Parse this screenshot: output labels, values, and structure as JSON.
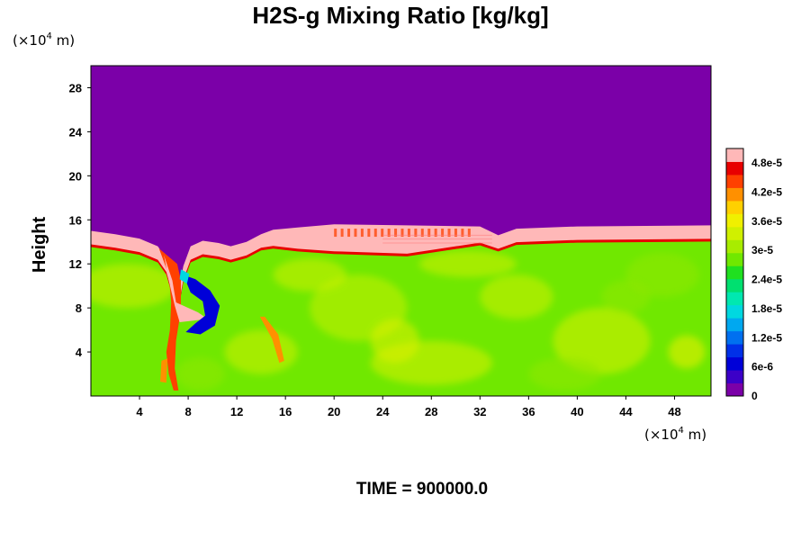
{
  "chart_data": {
    "type": "heatmap",
    "title": "H2S-g Mixing Ratio [kg/kg]",
    "ylabel": "Height",
    "x_unit": "(×10",
    "x_unit_exp": "4",
    "x_unit_tail": " m)",
    "y_unit": "(×10",
    "y_unit_exp": "4",
    "y_unit_tail": " m)",
    "xlim": [
      0,
      51
    ],
    "ylim": [
      0,
      30
    ],
    "xticks": [
      4,
      8,
      12,
      16,
      20,
      24,
      28,
      32,
      36,
      40,
      44,
      48
    ],
    "yticks": [
      4,
      8,
      12,
      16,
      20,
      24,
      28
    ],
    "colorbar": {
      "range": [
        0,
        5.1e-05
      ],
      "tick_values": [
        0,
        6e-06,
        1.2e-05,
        1.8e-05,
        2.4e-05,
        3e-05,
        3.6e-05,
        4.2e-05,
        4.8e-05
      ],
      "tick_labels": [
        "0",
        "6e-6",
        "1.2e-5",
        "1.8e-5",
        "2.4e-5",
        "3e-5",
        "3.6e-5",
        "4.2e-5",
        "4.8e-5"
      ],
      "colors": [
        "#7b00a8",
        "#3c00c8",
        "#0000d8",
        "#0030e8",
        "#0070f0",
        "#00a8f0",
        "#00d8e0",
        "#00e8b0",
        "#00e070",
        "#20e020",
        "#70e800",
        "#a8ec00",
        "#d0f000",
        "#f0f000",
        "#ffd000",
        "#ff9000",
        "#ff4000",
        "#e80000",
        "#ffb8b8"
      ]
    },
    "layers": [
      {
        "region": "upper",
        "y_range": [
          15.5,
          30
        ],
        "value": 0
      },
      {
        "region": "lower",
        "y_range": [
          0,
          15.5
        ],
        "value": 2.9e-05
      },
      {
        "region": "interface-band",
        "y_range": [
          13.5,
          15.5
        ],
        "value": 5e-05
      }
    ]
  },
  "footer": {
    "time_text": "TIME = 900000.0"
  }
}
